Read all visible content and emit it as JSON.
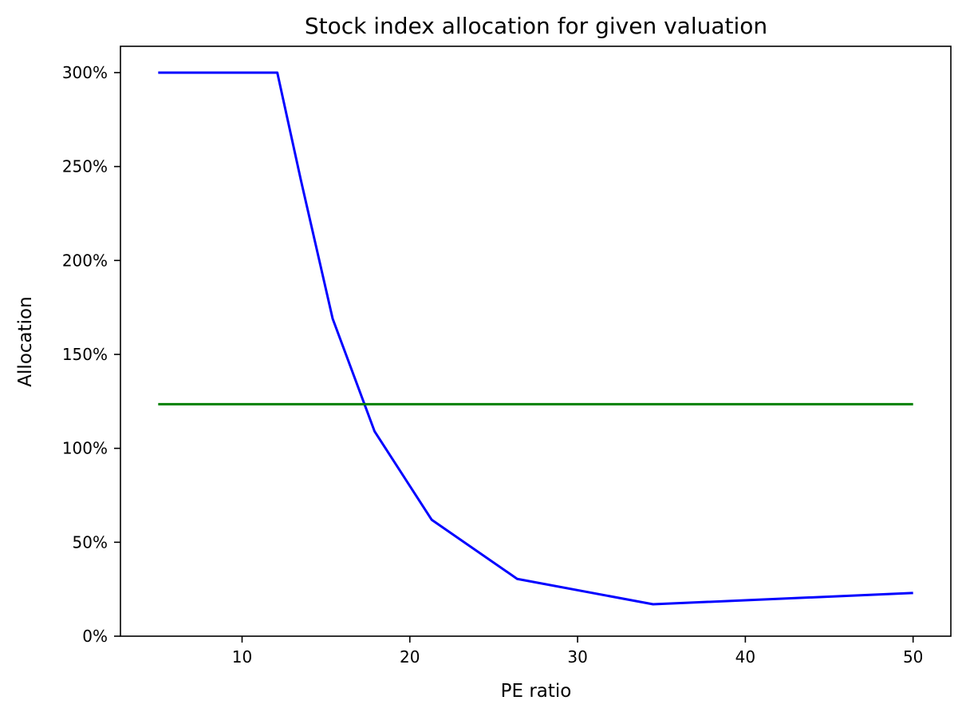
{
  "chart_data": {
    "type": "line",
    "title": "Stock index allocation for given valuation",
    "xlabel": "PE ratio",
    "ylabel": "Allocation",
    "xlim": [
      2.75,
      52.25
    ],
    "ylim": [
      0,
      3.14
    ],
    "x_ticks": [
      {
        "value": 10,
        "label": "10"
      },
      {
        "value": 20,
        "label": "20"
      },
      {
        "value": 30,
        "label": "30"
      },
      {
        "value": 40,
        "label": "40"
      },
      {
        "value": 50,
        "label": "50"
      }
    ],
    "y_ticks": [
      {
        "value": 0.0,
        "label": "0%"
      },
      {
        "value": 0.5,
        "label": "50%"
      },
      {
        "value": 1.0,
        "label": "100%"
      },
      {
        "value": 1.5,
        "label": "150%"
      },
      {
        "value": 2.0,
        "label": "200%"
      },
      {
        "value": 2.5,
        "label": "250%"
      },
      {
        "value": 3.0,
        "label": "300%"
      }
    ],
    "grid": false,
    "legend": false,
    "series": [
      {
        "color": "#0000ff",
        "points": [
          [
            5,
            3.0
          ],
          [
            12.1,
            3.0
          ],
          [
            13.5,
            2.43
          ],
          [
            15.4,
            1.69
          ],
          [
            17.9,
            1.09
          ],
          [
            21.3,
            0.62
          ],
          [
            26.4,
            0.305
          ],
          [
            34.5,
            0.17
          ],
          [
            50,
            0.23
          ]
        ]
      },
      {
        "color": "#008000",
        "points": [
          [
            5,
            1.235
          ],
          [
            50,
            1.235
          ]
        ]
      }
    ]
  }
}
